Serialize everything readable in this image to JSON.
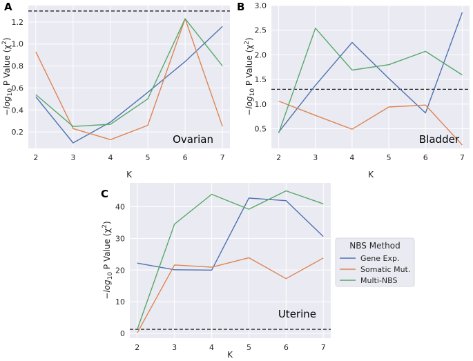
{
  "legend": {
    "title": "NBS Method",
    "entries": [
      "Gene Exp.",
      "Somatic Mut.",
      "Multi-NBS"
    ]
  },
  "colors": {
    "series": [
      "#4c72b0",
      "#dd8452",
      "#55a868"
    ],
    "threshold": "#222222",
    "background": "#eaeaf2"
  },
  "chart_data": [
    {
      "panel": "A",
      "annotation": "Ovarian",
      "type": "line",
      "x": [
        2,
        3,
        4,
        5,
        6,
        7
      ],
      "xlabel": "K",
      "ylabel_prefix": "−log",
      "ylabel_sub": "10",
      "ylabel_mid": " P Value (χ",
      "ylabel_sup": "2",
      "ylabel_end": ")",
      "xlim": [
        1.8,
        7.2
      ],
      "ylim": [
        0.05,
        1.35
      ],
      "yticks": [
        0.2,
        0.4,
        0.6,
        0.8,
        1.0,
        1.2
      ],
      "ytick_labels": [
        "0.2",
        "0.4",
        "0.6",
        "0.8",
        "1.0",
        "1.2"
      ],
      "threshold": 1.3,
      "series": [
        {
          "name": "Gene Exp.",
          "values": [
            0.52,
            0.1,
            0.29,
            0.56,
            0.84,
            1.16
          ]
        },
        {
          "name": "Somatic Mut.",
          "values": [
            0.93,
            0.23,
            0.13,
            0.26,
            1.23,
            0.25
          ]
        },
        {
          "name": "Multi-NBS",
          "values": [
            0.54,
            0.25,
            0.27,
            0.5,
            1.23,
            0.8
          ]
        }
      ]
    },
    {
      "panel": "B",
      "annotation": "Bladder",
      "type": "line",
      "x": [
        2,
        3,
        4,
        5,
        6,
        7
      ],
      "xlabel": "K",
      "ylabel_prefix": "−log",
      "ylabel_sub": "10",
      "ylabel_mid": " P Value (χ",
      "ylabel_sup": "2",
      "ylabel_end": ")",
      "xlim": [
        1.8,
        7.2
      ],
      "ylim": [
        0.1,
        3.0
      ],
      "yticks": [
        0.5,
        1.0,
        1.5,
        2.0,
        2.5,
        3.0
      ],
      "ytick_labels": [
        "0.5",
        "1.0",
        "1.5",
        "2.0",
        "2.5",
        "3.0"
      ],
      "threshold": 1.3,
      "series": [
        {
          "name": "Gene Exp.",
          "values": [
            0.43,
            1.38,
            2.25,
            1.52,
            0.82,
            2.86
          ]
        },
        {
          "name": "Somatic Mut.",
          "values": [
            1.06,
            0.77,
            0.49,
            0.94,
            0.98,
            0.17
          ]
        },
        {
          "name": "Multi-NBS",
          "values": [
            0.41,
            2.54,
            1.69,
            1.8,
            2.07,
            1.59
          ]
        }
      ]
    },
    {
      "panel": "C",
      "annotation": "Uterine",
      "type": "line",
      "x": [
        2,
        3,
        4,
        5,
        6,
        7
      ],
      "xlabel": "K",
      "ylabel_prefix": "−log",
      "ylabel_sub": "10",
      "ylabel_mid": " P Value (χ",
      "ylabel_sup": "2",
      "ylabel_end": ")",
      "xlim": [
        1.8,
        7.2
      ],
      "ylim": [
        -1.5,
        47.5
      ],
      "yticks": [
        0,
        10,
        20,
        30,
        40
      ],
      "ytick_labels": [
        "0",
        "10",
        "20",
        "30",
        "40"
      ],
      "threshold": 1.3,
      "series": [
        {
          "name": "Gene Exp.",
          "values": [
            22.2,
            20.1,
            20.0,
            42.7,
            41.9,
            30.6
          ]
        },
        {
          "name": "Somatic Mut.",
          "values": [
            0.2,
            21.6,
            20.9,
            23.9,
            17.3,
            23.8
          ]
        },
        {
          "name": "Multi-NBS",
          "values": [
            1.3,
            34.5,
            43.9,
            39.2,
            45.0,
            40.9
          ]
        }
      ]
    }
  ]
}
